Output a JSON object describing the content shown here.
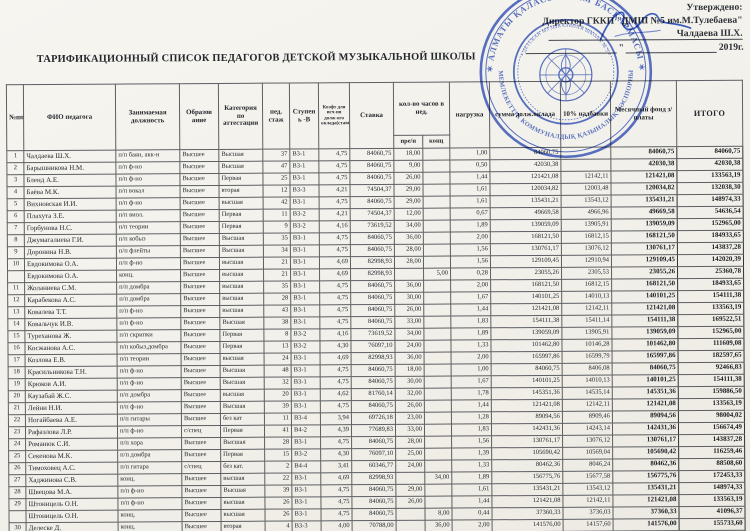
{
  "title": "ТАРИФИКАЦИОННЫЙ СПИСОК ПЕДАГОГОВ ДЕТСКОЙ МУЗЫКАЛЬНОЙ ШКОЛЫ",
  "approval": {
    "approved_label": "Утверждено:",
    "director_line": "Директор ГККП \"ДМШ №5 им.М.Тулебаева\"",
    "director_name": "Чалдаева Ш.Х.",
    "quote_mark": "\"",
    "year_label": "2019г."
  },
  "stamp": {
    "color": "#3350b2",
    "ring_top": "✶ АЛМАТЫ ҚАЛАСЫ БІЛІМ БАСҚАРМАСЫ ✶",
    "ring_bottom": "МЕМЛЕКЕТТІК КОММУНАЛДЫҚ ҚАЗЫНАЛЫҚ КӘСІПОРНЫ",
    "ring_inner": "• ДЕТСКАЯ МУЗЫКАЛЬНАЯ ШКОЛА № 5 •"
  },
  "colors": {
    "paper": "#f3f1eb",
    "ink": "#26292e",
    "grid": "#5d5f63"
  },
  "table": {
    "headers": {
      "num": "№пп",
      "fio": "ФИО  педагога",
      "position": "Занимаемая должность",
      "education": "Образов ание",
      "category": "Категория по аттестации",
      "experience": "пед. стаж",
      "stage": "Ступен ь -В",
      "coef": "Коэфт для исч-ия долж-ого оклада(ставке)",
      "rate": "Ставка",
      "hours": "кол-во часов в нед.",
      "pre_n": "пре/н",
      "konc": "конц",
      "load": "нагрузка",
      "salary_sum": "сумма долж.оклада",
      "bonus": "10% надбавки",
      "monthly_fund": "Месячный фонд з/платы",
      "total": "ИТОГО"
    },
    "rows": [
      [
        "1",
        "Чалдаева Ш.Х.",
        "п/п баян, акк-н",
        "Высшее",
        "Высшая",
        "37",
        "В3-1",
        "4,75",
        "84060,75",
        "18,00",
        "",
        "1,00",
        "84060,75",
        "",
        "84060,75",
        "84060,75"
      ],
      [
        "2",
        "Барышникова Н.М.",
        "п/п ф-но",
        "Высшее",
        "Высшая",
        "47",
        "В3-1",
        "4,75",
        "84060,75",
        "9,00",
        "",
        "0,50",
        "42030,38",
        "",
        "42030,38",
        "42030,38"
      ],
      [
        "3",
        "Бленд А.Е.",
        "п/п ф-но",
        "Высшее",
        "Первая",
        "25",
        "В3-1",
        "4,75",
        "84060,75",
        "26,00",
        "",
        "1,44",
        "121421,08",
        "12142,11",
        "121421,08",
        "133563,19"
      ],
      [
        "4",
        "Баёва М.К.",
        "п/п вокал",
        "Высшее",
        "вторая",
        "12",
        "В3-3",
        "4,21",
        "74504,37",
        "29,00",
        "",
        "1,61",
        "120034,82",
        "12003,48",
        "120034,82",
        "132038,30"
      ],
      [
        "5",
        "Вихновская И.И.",
        "п/п ф-но",
        "Высшее",
        "высшая",
        "42",
        "В3-1",
        "4,75",
        "84060,75",
        "29,00",
        "",
        "1,61",
        "135431,21",
        "13543,12",
        "135431,21",
        "148974,33"
      ],
      [
        "6",
        "Плахута З.Е.",
        "п/п виол.",
        "Высшее",
        "Первая",
        "11",
        "В3-2",
        "4,21",
        "74504,37",
        "12,00",
        "",
        "0,67",
        "49669,58",
        "4966,96",
        "49669,58",
        "54636,54"
      ],
      [
        "7",
        "Горбунова Н.С.",
        "п/п теории",
        "Высшее",
        "Первая",
        "9",
        "В3-2",
        "4,16",
        "73619,52",
        "34,00",
        "",
        "1,89",
        "139059,09",
        "13905,91",
        "139059,09",
        "152965,00"
      ],
      [
        "8",
        "Джумагалиева Г.И.",
        "п/п кобыз",
        "Высшее",
        "Высшая",
        "35",
        "В3-1",
        "4,75",
        "84060,75",
        "36,00",
        "",
        "2,00",
        "168121,50",
        "16812,15",
        "168121,50",
        "184933,65"
      ],
      [
        "9",
        "Доронина Н.В.",
        "п/п флейты",
        "Высшее",
        "Высшая",
        "34",
        "В3-1",
        "4,75",
        "84060,75",
        "28,00",
        "",
        "1,56",
        "130761,17",
        "13076,12",
        "130761,17",
        "143837,28"
      ],
      [
        "10",
        "Евдокимова О.А.",
        "п/п ф-но",
        "Высшее",
        "высшая",
        "21",
        "В3-1",
        "4,69",
        "82998,93",
        "28,00",
        "",
        "1,56",
        "129109,45",
        "12910,94",
        "129109,45",
        "142020,39"
      ],
      [
        "",
        "Евдокимова О.А.",
        "конц.",
        "Высшее",
        "высшая",
        "21",
        "В3-1",
        "4,69",
        "82998,93",
        "",
        "5,00",
        "0,28",
        "23055,26",
        "2305,53",
        "23055,26",
        "25360,78"
      ],
      [
        "11",
        "Жоланиева С.М.",
        "п/п домбра",
        "Высшее",
        "высшая",
        "35",
        "В3-1",
        "4,75",
        "84060,75",
        "36,00",
        "",
        "2,00",
        "168121,50",
        "16812,15",
        "168121,50",
        "184933,65"
      ],
      [
        "12",
        "Карабекова А.С.",
        "п/п домбра",
        "Высшее",
        "высшая",
        "28",
        "В3-1",
        "4,75",
        "84060,75",
        "30,00",
        "",
        "1,67",
        "140101,25",
        "14010,13",
        "140101,25",
        "154111,38"
      ],
      [
        "13",
        "Ковалева Т.Т.",
        "п/п ф-но",
        "Высшее",
        "высшая",
        "43",
        "В3-1",
        "4,75",
        "84060,75",
        "26,00",
        "",
        "1,44",
        "121421,08",
        "12142,11",
        "121421,08",
        "133563,19"
      ],
      [
        "14",
        "Ковальчук И.В.",
        "п/п ф-но",
        "Высшее",
        "Высшая",
        "38",
        "В3-1",
        "4,75",
        "84060,75",
        "33,00",
        "",
        "1,83",
        "154111,38",
        "15411,14",
        "154111,38",
        "169522,51"
      ],
      [
        "15",
        "Туреханова Ж.",
        "п/п скрипки",
        "Высшее",
        "Первая",
        "8",
        "В3-2",
        "4,16",
        "73619,52",
        "34,00",
        "",
        "1,89",
        "139059,09",
        "13905,91",
        "139059,09",
        "152965,00"
      ],
      [
        "16",
        "Косжанова А.С.",
        "п/п кобыз,домбра",
        "Высшее",
        "Первая",
        "13",
        "В3-2",
        "4,30",
        "76097,10",
        "24,00",
        "",
        "1,33",
        "101462,80",
        "10146,28",
        "101462,80",
        "111609,08"
      ],
      [
        "17",
        "Козлова Е.В.",
        "п/п теории",
        "Высшее",
        "высшая",
        "24",
        "В3-1",
        "4,69",
        "82998,93",
        "36,00",
        "",
        "2,00",
        "165997,86",
        "16599,79",
        "165997,86",
        "182597,65"
      ],
      [
        "18",
        "Красильникова Т.Н.",
        "п/п ф-но",
        "Высшее",
        "Высшая",
        "48",
        "В3-1",
        "4,75",
        "84060,75",
        "18,00",
        "",
        "1,00",
        "84060,75",
        "8406,08",
        "84060,75",
        "92466,83"
      ],
      [
        "19",
        "Крюков А.И.",
        "п/п ф-но",
        "Высшее",
        "Высшая",
        "32",
        "В3-1",
        "4,75",
        "84060,75",
        "30,00",
        "",
        "1,67",
        "140101,25",
        "14010,13",
        "140101,25",
        "154111,38"
      ],
      [
        "20",
        "Каузабай Ж.С.",
        "п/п домбра",
        "Высшее",
        "высшая",
        "20",
        "В3-1",
        "4,62",
        "81760,14",
        "32,00",
        "",
        "1,78",
        "145351,36",
        "14535,14",
        "145351,36",
        "159886,50"
      ],
      [
        "21",
        "Лейни Н.И.",
        "п/п ф-но",
        "Высшее",
        "Высшая",
        "39",
        "В3-1",
        "4,75",
        "84060,75",
        "26,00",
        "",
        "1,44",
        "121421,08",
        "12142,11",
        "121421,08",
        "133563,19"
      ],
      [
        "22",
        "Ногайбаева А.Е.",
        "п/п гитары",
        "Высшее",
        "без кат",
        "11",
        "В3-4",
        "3,94",
        "69726,18",
        "23,00",
        "",
        "1,28",
        "89094,56",
        "8909,46",
        "89094,56",
        "98004,02"
      ],
      [
        "23",
        "Рафаэлова Л.Р.",
        "п/п ф-но",
        "с/спец",
        "Первая",
        "41",
        "В4-2",
        "4,39",
        "77689,83",
        "33,00",
        "",
        "1,83",
        "142431,36",
        "14243,14",
        "142431,36",
        "156674,49"
      ],
      [
        "24",
        "Романюк С.И.",
        "п/п хора",
        "Высшее",
        "Высшая",
        "28",
        "В3-1",
        "4,75",
        "84060,75",
        "28,00",
        "",
        "1,56",
        "130761,17",
        "13076,12",
        "130761,17",
        "143837,28"
      ],
      [
        "25",
        "Секенова М.К.",
        "п/п домбра",
        "Высшее",
        "Первая",
        "15",
        "В3-2",
        "4,30",
        "76097,10",
        "25,00",
        "",
        "1,39",
        "105690,42",
        "10569,04",
        "105690,42",
        "116259,46"
      ],
      [
        "26",
        "Тимоховец А.С.",
        "п/п гитара",
        "с/спец",
        "без кат.",
        "2",
        "В4-4",
        "3,41",
        "60346,77",
        "24,00",
        "",
        "1,33",
        "80462,36",
        "8046,24",
        "80462,36",
        "88508,60"
      ],
      [
        "27",
        "Хаджинова С.В.",
        "конц.",
        "Высшее",
        "высшая",
        "22",
        "В3-1",
        "4,69",
        "82998,93",
        "",
        "34,00",
        "1,89",
        "156775,76",
        "15677,58",
        "156775,76",
        "172453,33"
      ],
      [
        "28",
        "Швецова М.А.",
        "п/п ф-но",
        "Высшее",
        "Высшая",
        "39",
        "В3-1",
        "4,75",
        "84060,75",
        "29,00",
        "",
        "1,61",
        "135431,21",
        "13543,12",
        "135431,21",
        "148974,33"
      ],
      [
        "29",
        "Штоницель О.Н.",
        "п/п ф-но",
        "Высшее",
        "высшая",
        "26",
        "В3-1",
        "4,75",
        "84060,75",
        "26,00",
        "",
        "1,44",
        "121421,08",
        "12142,11",
        "121421,08",
        "133563,19"
      ],
      [
        "",
        "Штоницель О.Н.",
        "конц.",
        "Высшее",
        "высшая",
        "26",
        "В3-1",
        "4,75",
        "84060,75",
        "",
        "8,00",
        "0,44",
        "37360,33",
        "3736,03",
        "37360,33",
        "41096,37"
      ],
      [
        "30",
        "Делеске Д.",
        "конц.",
        "Высшее",
        "вторая",
        "4",
        "В3-3",
        "4,00",
        "70788,00",
        "",
        "36,00",
        "2,00",
        "141576,00",
        "14157,60",
        "141576,00",
        "155733,60"
      ],
      [
        "31",
        "Сыртанова Н.М.",
        "п/п ф-но",
        "Высшее",
        "высшая",
        "25",
        "В3-1",
        "4,75",
        "84060,75",
        "24,00",
        "",
        "1,33",
        "112081,00",
        "11208,10",
        "112081,00",
        "123289,10"
      ]
    ]
  }
}
